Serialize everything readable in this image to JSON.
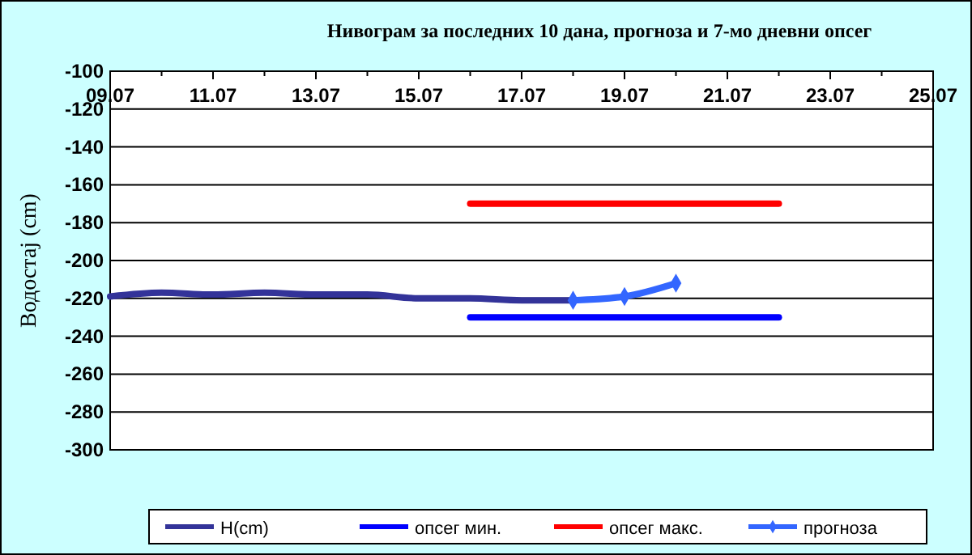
{
  "chart_data": {
    "type": "line",
    "title": "Нивограм за последних 10 дана, прогноза и 7-мо дневни опсег",
    "ylabel": "Водостај (cm)",
    "ylim": [
      -300,
      -100
    ],
    "yticks": [
      -300,
      -280,
      -260,
      -240,
      -220,
      -200,
      -180,
      -160,
      -140,
      -120,
      -100
    ],
    "xlim": [
      "--07-09",
      "--07-25"
    ],
    "xticks": [
      {
        "value": "--07-09",
        "label": "09.07"
      },
      {
        "value": "--07-11",
        "label": "11.07"
      },
      {
        "value": "--07-13",
        "label": "13.07"
      },
      {
        "value": "--07-15",
        "label": "15.07"
      },
      {
        "value": "--07-17",
        "label": "17.07"
      },
      {
        "value": "--07-19",
        "label": "19.07"
      },
      {
        "value": "--07-21",
        "label": "21.07"
      },
      {
        "value": "--07-23",
        "label": "23.07"
      },
      {
        "value": "--07-25",
        "label": "25.07"
      }
    ],
    "grid": "y",
    "legend": "bottom",
    "series": [
      {
        "name": "H(cm)",
        "color": "#333399",
        "x": [
          "--07-09",
          "--07-10",
          "--07-11",
          "--07-12",
          "--07-13",
          "--07-14",
          "--07-15",
          "--07-16",
          "--07-17",
          "--07-18"
        ],
        "values": [
          -219,
          -217,
          -218,
          -217,
          -218,
          -218,
          -220,
          -220,
          -221,
          -221
        ]
      },
      {
        "name": "опсег мин.",
        "color": "#0000ff",
        "x": [
          "--07-16",
          "--07-22"
        ],
        "values": [
          -230,
          -230
        ]
      },
      {
        "name": "опсег макс.",
        "color": "#ff0000",
        "x": [
          "--07-16",
          "--07-22"
        ],
        "values": [
          -170,
          -170
        ]
      },
      {
        "name": "прогноза",
        "color": "#3366ff",
        "marker": "diamond",
        "x": [
          "--07-18",
          "--07-19",
          "--07-20"
        ],
        "values": [
          -221,
          -219,
          -212
        ]
      }
    ]
  }
}
